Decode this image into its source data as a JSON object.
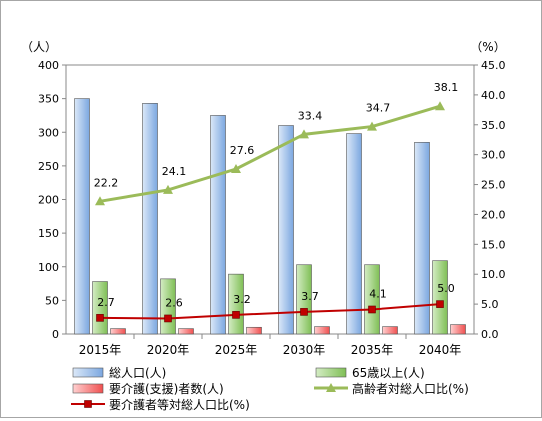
{
  "chart_data": {
    "type": "bar+line",
    "categories": [
      "2015年",
      "2020年",
      "2025年",
      "2030年",
      "2035年",
      "2040年"
    ],
    "left_axis": {
      "unit_label": "（人）",
      "ylim": [
        0,
        400
      ],
      "ticks": [
        "0",
        "50",
        "100",
        "150",
        "200",
        "250",
        "300",
        "350",
        "400"
      ]
    },
    "right_axis": {
      "unit_label": "（%）",
      "ylim": [
        0,
        45
      ],
      "ticks": [
        "0.0",
        "5.0",
        "10.0",
        "15.0",
        "20.0",
        "25.0",
        "30.0",
        "35.0",
        "40.0",
        "45.0"
      ]
    },
    "series": [
      {
        "name": "総人口(人)",
        "kind": "bar",
        "axis": "left",
        "color": "#9dc3e6",
        "values": [
          350,
          343,
          325,
          310,
          298,
          285
        ]
      },
      {
        "name": "65歳以上(人)",
        "kind": "bar",
        "axis": "left",
        "color": "#a9d18e",
        "values": [
          78,
          82,
          89,
          103,
          103,
          109
        ]
      },
      {
        "name": "要介護(支援)者数(人)",
        "kind": "bar",
        "axis": "left",
        "color": "#ff8b8b",
        "values": [
          8,
          8,
          10,
          11,
          11,
          14
        ]
      },
      {
        "name": "高齢者対総人口比(%)",
        "kind": "line",
        "axis": "right",
        "color": "#9bbb59",
        "values": [
          22.2,
          24.1,
          27.6,
          33.4,
          34.7,
          38.1
        ],
        "labels": [
          "22.2",
          "24.1",
          "27.6",
          "33.4",
          "34.7",
          "38.1"
        ]
      },
      {
        "name": "要介護者等対総人口比(%)",
        "kind": "line",
        "axis": "right",
        "color": "#c00000",
        "values": [
          2.7,
          2.6,
          3.2,
          3.7,
          4.1,
          5.0
        ],
        "labels": [
          "2.7",
          "2.6",
          "3.2",
          "3.7",
          "4.1",
          "5.0"
        ]
      }
    ],
    "grid": false,
    "legend_position": "bottom"
  }
}
